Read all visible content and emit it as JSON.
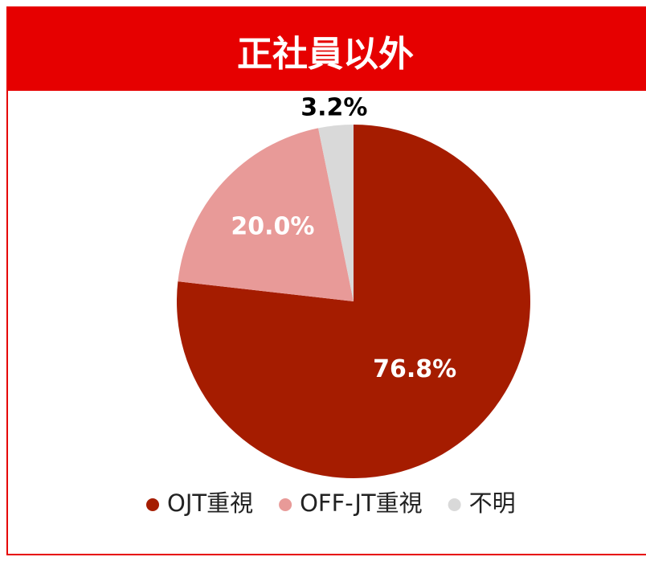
{
  "chart_data": {
    "type": "pie",
    "title": "正社員以外",
    "labels": [
      "OJT重視",
      "OFF-JT重視",
      "不明"
    ],
    "values": [
      76.8,
      20.0,
      3.2
    ],
    "value_labels": [
      "76.8%",
      "20.0%",
      "3.2%"
    ],
    "colors": [
      "#a51c00",
      "#e89a98",
      "#d9d9d9"
    ],
    "legend": "bottom"
  }
}
